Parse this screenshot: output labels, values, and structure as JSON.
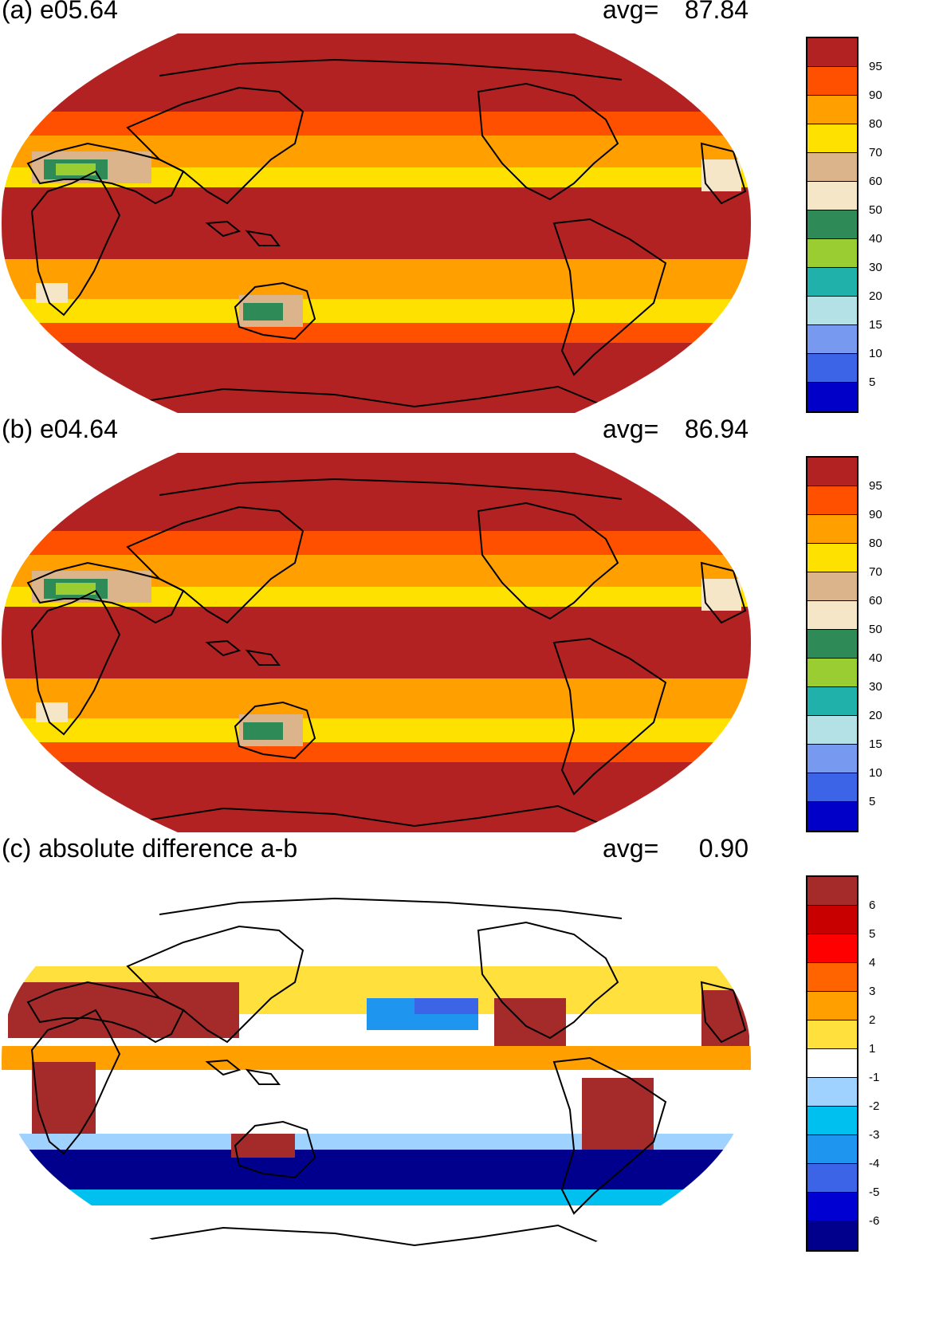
{
  "panels": [
    {
      "title": "(a) e05.64",
      "avg_label": "avg=",
      "avg_value": "87.84",
      "kind": "level",
      "colorbar": {
        "colors": [
          "#0000c8",
          "#3c64e6",
          "#7899f0",
          "#b4e1e6",
          "#20b2aa",
          "#9acd32",
          "#2e8b57",
          "#f5e6c8",
          "#dcb48c",
          "#ffe100",
          "#ffa000",
          "#ff5000",
          "#b22222"
        ],
        "labels": [
          "5",
          "10",
          "15",
          "20",
          "30",
          "40",
          "50",
          "60",
          "70",
          "80",
          "90",
          "95"
        ]
      }
    },
    {
      "title": "(b) e04.64",
      "avg_label": "avg=",
      "avg_value": "86.94",
      "kind": "level",
      "colorbar": {
        "colors": [
          "#0000c8",
          "#3c64e6",
          "#7899f0",
          "#b4e1e6",
          "#20b2aa",
          "#9acd32",
          "#2e8b57",
          "#f5e6c8",
          "#dcb48c",
          "#ffe100",
          "#ffa000",
          "#ff5000",
          "#b22222"
        ],
        "labels": [
          "5",
          "10",
          "15",
          "20",
          "30",
          "40",
          "50",
          "60",
          "70",
          "80",
          "90",
          "95"
        ]
      }
    },
    {
      "title": "(c) absolute difference a-b",
      "avg_label": "avg=",
      "avg_value": "0.90",
      "kind": "diff",
      "colorbar": {
        "colors": [
          "#00008c",
          "#0000d2",
          "#3c64e6",
          "#1e96f0",
          "#00c0f0",
          "#a0d2ff",
          "#ffffff",
          "#ffe03c",
          "#ffa000",
          "#ff6400",
          "#ff0000",
          "#c80000",
          "#a52a2a"
        ],
        "labels": [
          "-6",
          "-5",
          "-4",
          "-3",
          "-2",
          "-1",
          "1",
          "2",
          "3",
          "4",
          "5",
          "6"
        ]
      }
    }
  ]
}
